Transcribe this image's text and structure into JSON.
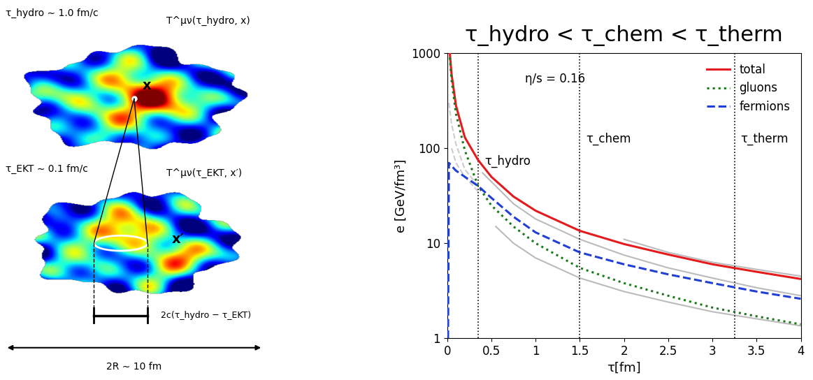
{
  "diagram": {
    "top_panel": {
      "time": "τ_hydro ∼ 1.0 fm/c",
      "tensor": "T^μν(τ_hydro, x)",
      "point": "x"
    },
    "bottom_panel": {
      "time": "τ_EKT ∼ 0.1 fm/c",
      "tensor": "T^μν(τ_EKT, x′)",
      "point": "x′"
    },
    "causal_width": "2c(τ_hydro − τ_EKT)",
    "system_size": "2R ∼ 10 fm"
  },
  "chart_data": {
    "type": "line",
    "title": "τ_hydro < τ_chem < τ_therm",
    "x_label": "τ[fm]",
    "y_label": "e [GeV/fm³]",
    "annotation": "η/s = 0.16",
    "log": "y",
    "xlim": [
      0,
      4
    ],
    "xticks": [
      0,
      0.5,
      1,
      1.5,
      2,
      2.5,
      3,
      3.5,
      4
    ],
    "ylim": [
      1,
      1000
    ],
    "yticks": [
      1,
      10,
      100,
      1000
    ],
    "legend": "upper right",
    "vertical_lines": [
      {
        "x": 0.35,
        "label": "τ_hydro"
      },
      {
        "x": 1.5,
        "label": "τ_chem"
      },
      {
        "x": 3.25,
        "label": "τ_therm"
      }
    ],
    "series": [
      {
        "name": "total",
        "color": "#e41a1c",
        "line_style": "solid",
        "x": [
          0.03,
          0.05,
          0.1,
          0.2,
          0.35,
          0.5,
          0.75,
          1.0,
          1.5,
          2.0,
          2.5,
          3.0,
          3.5,
          4.0
        ],
        "values": [
          1000,
          600,
          280,
          130,
          75,
          50,
          31,
          22,
          13.5,
          9.8,
          7.6,
          6.0,
          5.0,
          4.2
        ]
      },
      {
        "name": "gluons",
        "color": "#1a7a1a",
        "line_style": "dotted",
        "x": [
          0.03,
          0.05,
          0.1,
          0.2,
          0.35,
          0.5,
          0.75,
          1.0,
          1.5,
          2.0,
          2.5,
          3.0,
          3.5,
          4.0
        ],
        "values": [
          900,
          520,
          230,
          95,
          40,
          25,
          15,
          10,
          5.5,
          3.8,
          2.8,
          2.1,
          1.7,
          1.4
        ]
      },
      {
        "name": "fermions",
        "color": "#1f3fd6",
        "line_style": "dashed",
        "x": [
          0.01,
          0.02,
          0.05,
          0.1,
          0.2,
          0.35,
          0.5,
          0.75,
          1.0,
          1.5,
          2.0,
          2.5,
          3.0,
          3.5,
          4.0
        ],
        "values": [
          1,
          70,
          65,
          58,
          50,
          40,
          30,
          19,
          13,
          8,
          6,
          4.7,
          3.8,
          3.1,
          2.6
        ]
      }
    ],
    "reference_curves": [
      {
        "color": "#bbbbbb",
        "line_style": "solid",
        "x": [
          2.0,
          2.5,
          3.0,
          3.5,
          4.0
        ],
        "values": [
          11,
          8,
          6.3,
          5.3,
          4.5
        ]
      },
      {
        "color": "#bbbbbb",
        "line_style": "solid",
        "x": [
          0.4,
          0.75,
          1.0,
          1.5,
          2.0,
          2.5,
          3.0,
          3.5,
          4.0
        ],
        "values": [
          55,
          26,
          18,
          11,
          7.5,
          5.5,
          4.3,
          3.4,
          2.8
        ]
      },
      {
        "color": "#bbbbbb",
        "line_style": "solid",
        "x": [
          0.55,
          0.75,
          1.0,
          1.5,
          2.0,
          2.5,
          3.0,
          3.5,
          4.0
        ],
        "values": [
          15,
          10,
          7,
          4.3,
          3.1,
          2.4,
          1.9,
          1.6,
          1.35
        ]
      },
      {
        "color": "#cccccc",
        "line_style": "dashed",
        "x": [
          0.02,
          0.05,
          0.1,
          0.2,
          0.35
        ],
        "values": [
          300,
          180,
          110,
          60,
          40
        ]
      },
      {
        "color": "#cccccc",
        "line_style": "dashed",
        "x": [
          0.05,
          0.1,
          0.2,
          0.35
        ],
        "values": [
          100,
          70,
          50,
          35
        ]
      }
    ]
  }
}
